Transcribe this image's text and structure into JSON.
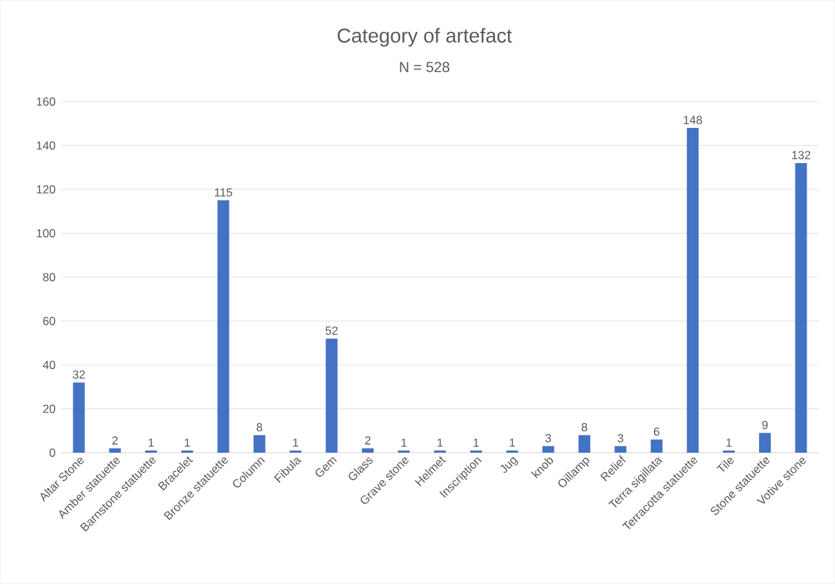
{
  "chart_data": {
    "type": "bar",
    "title": "Category of artefact",
    "subtitle": "N = 528",
    "categories": [
      "Altar Stone",
      "Amber statuette",
      "Barnstone statuette",
      "Bracelet",
      "Bronze statuette",
      "Column",
      "Fibula",
      "Gem",
      "Glass",
      "Grave stone",
      "Helmet",
      "Inscription",
      "Jug",
      "knob",
      "Oillamp",
      "Relief",
      "Terra sigillata",
      "Terracotta statuette",
      "Tile",
      "Stone statuette",
      "Votive stone"
    ],
    "values": [
      32,
      2,
      1,
      1,
      115,
      8,
      1,
      52,
      2,
      1,
      1,
      1,
      1,
      3,
      8,
      3,
      6,
      148,
      1,
      9,
      132
    ],
    "color": "#4472c4",
    "ylim": [
      0,
      160
    ],
    "yticks": [
      0,
      20,
      40,
      60,
      80,
      100,
      120,
      140,
      160
    ],
    "grid": "y",
    "data_labels": true
  }
}
